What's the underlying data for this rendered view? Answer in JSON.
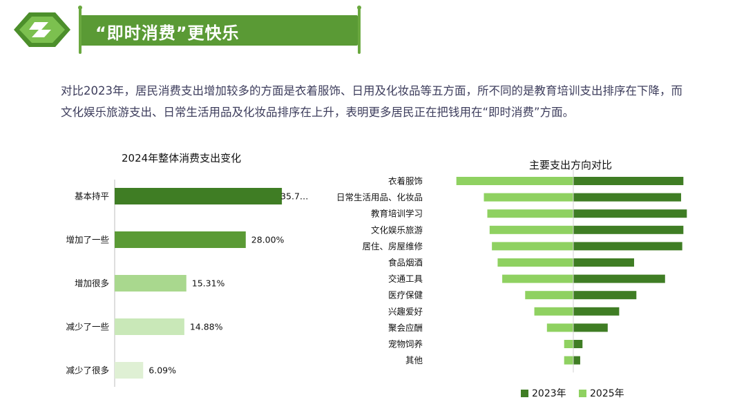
{
  "header": {
    "title": "“即时消费”更快乐"
  },
  "intro": {
    "text": "对比2023年，居民消费支出增加较多的方面是衣着服饰、日用及化妆品等五方面，所不同的是教育培训支出排序在下降，而文化娱乐旅游支出、日常生活用品及化妆品排序在上升，表明更多居民正在把钱用在“即时消费”方面。"
  },
  "colors": {
    "brand": "#5a9a35",
    "dark_green": "#3f7d24",
    "mid_green": "#5a9a35",
    "light_green": "#a9d88e",
    "pale_green": "#c9e8b8",
    "palest_green": "#dff0d4",
    "bright_green": "#8fd161"
  },
  "chart_data": [
    {
      "type": "bar",
      "orientation": "horizontal",
      "title": "2024年整体消费支出变化",
      "categories": [
        "基本持平",
        "增加了一些",
        "增加很多",
        "减少了一些",
        "减少了很多"
      ],
      "values": [
        35.72,
        28.0,
        15.31,
        14.88,
        6.09
      ],
      "value_labels": [
        "35.7…",
        "28.00%",
        "15.31%",
        "14.88%",
        "6.09%"
      ],
      "colors": [
        "#3f7d24",
        "#5a9a35",
        "#a9d88e",
        "#c9e8b8",
        "#dff0d4"
      ],
      "xlim": [
        0,
        36
      ]
    },
    {
      "type": "bar",
      "orientation": "horizontal",
      "layout": "diverging",
      "title": "主要支出方向对比",
      "categories": [
        "衣着服饰",
        "日常生活用品、化妆品",
        "教育培训学习",
        "文化娱乐旅游",
        "居住、房屋维修",
        "食品烟酒",
        "交通工具",
        "医疗保健",
        "兴趣爱好",
        "聚会应酬",
        "宠物饲养",
        "其他"
      ],
      "series": [
        {
          "name": "2023年",
          "side": "right",
          "color": "#3f7d24",
          "values": [
            9.6,
            9.4,
            9.9,
            9.6,
            9.5,
            5.3,
            8.0,
            5.5,
            4.0,
            3.0,
            0.8,
            0.6
          ]
        },
        {
          "name": "2025年",
          "side": "left",
          "color": "#8fd161",
          "values": [
            10.2,
            7.8,
            7.5,
            7.3,
            7.1,
            6.6,
            6.2,
            4.2,
            3.4,
            2.3,
            0.8,
            0.8
          ]
        }
      ],
      "legend_position": "bottom"
    }
  ]
}
